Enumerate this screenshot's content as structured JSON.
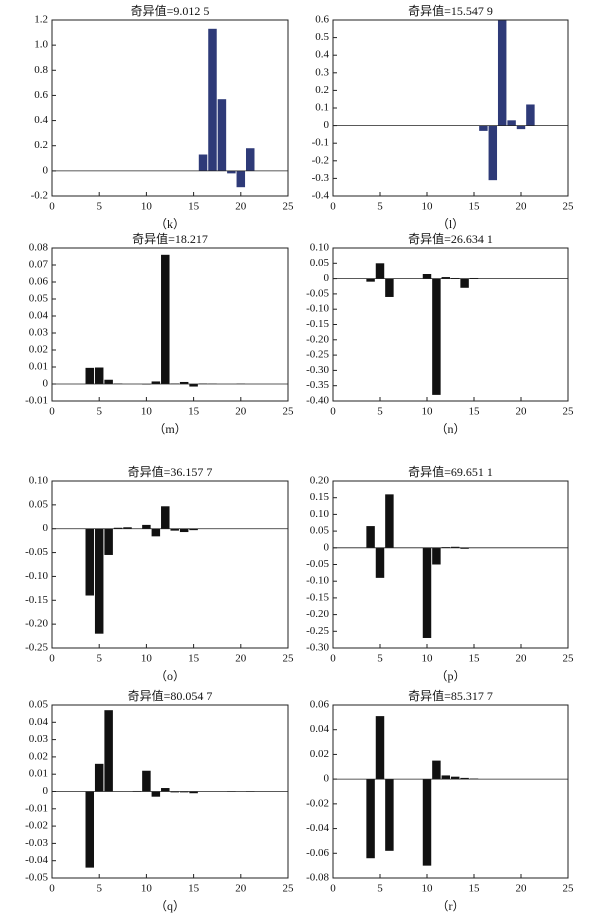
{
  "chart_data": [
    {
      "type": "bar",
      "title": "奇异值=9.012 5",
      "caption": "（k）",
      "color": "#2e3a78",
      "x": [
        1,
        2,
        3,
        4,
        5,
        6,
        7,
        8,
        9,
        10,
        11,
        12,
        13,
        14,
        15,
        16,
        17,
        18,
        19,
        20,
        21
      ],
      "values": [
        0,
        0,
        0,
        0,
        0,
        0,
        0,
        0,
        0,
        0,
        0,
        0,
        0,
        0,
        0,
        0.13,
        1.13,
        0.57,
        -0.02,
        -0.13,
        0.18
      ],
      "xlim": [
        0,
        25
      ],
      "xticks": [
        0,
        5,
        10,
        15,
        20,
        25
      ],
      "ylim": [
        -0.2,
        1.2
      ],
      "yticks": [
        -0.2,
        0,
        0.2,
        0.4,
        0.6,
        0.8,
        {
          "value": 1,
          "label": "1.0"
        },
        1.2
      ]
    },
    {
      "type": "bar",
      "title": "奇异值=15.547 9",
      "caption": "（l）",
      "color": "#2e3a78",
      "x": [
        1,
        2,
        3,
        4,
        5,
        6,
        7,
        8,
        9,
        10,
        11,
        12,
        13,
        14,
        15,
        16,
        17,
        18,
        19,
        20,
        21
      ],
      "values": [
        0,
        0,
        0,
        0,
        0,
        0,
        0,
        0,
        0,
        0,
        0,
        0,
        0,
        0,
        0,
        -0.03,
        -0.31,
        0.6,
        0.03,
        -0.02,
        0.12
      ],
      "xlim": [
        0,
        25
      ],
      "xticks": [
        0,
        5,
        10,
        15,
        20,
        25
      ],
      "ylim": [
        -0.4,
        0.6
      ],
      "yticks": [
        -0.4,
        -0.3,
        -0.2,
        -0.1,
        0,
        0.1,
        0.2,
        0.3,
        0.4,
        0.5,
        0.6
      ]
    },
    {
      "type": "bar",
      "title": "奇异值=18.217",
      "caption": "（m）",
      "color": "#111111",
      "x": [
        1,
        2,
        3,
        4,
        5,
        6,
        7,
        8,
        9,
        10,
        11,
        12,
        13,
        14,
        15,
        16,
        17,
        18,
        19,
        20,
        21
      ],
      "values": [
        0,
        0,
        0,
        0.0095,
        0.0097,
        0.0025,
        0.0003,
        0,
        0,
        -0.0003,
        0.0015,
        0.076,
        0.0003,
        0.0012,
        -0.0015,
        0.0003,
        0.0002,
        0,
        0,
        0.0002,
        0
      ],
      "xlim": [
        0,
        25
      ],
      "xticks": [
        0,
        5,
        10,
        15,
        20,
        25
      ],
      "ylim": [
        -0.01,
        0.08
      ],
      "yticks": [
        -0.01,
        0,
        0.01,
        0.02,
        0.03,
        0.04,
        0.05,
        0.06,
        0.07,
        0.08
      ]
    },
    {
      "type": "bar",
      "title": "奇异值=26.634 1",
      "caption": "（n）",
      "color": "#111111",
      "x": [
        1,
        2,
        3,
        4,
        5,
        6,
        7,
        8,
        9,
        10,
        11,
        12,
        13,
        14,
        15,
        16,
        17,
        18,
        19,
        20,
        21
      ],
      "values": [
        0,
        0,
        0,
        -0.01,
        0.05,
        -0.06,
        0,
        0,
        0,
        0.015,
        -0.38,
        0.005,
        0.002,
        -0.03,
        0.002,
        0,
        0,
        0,
        0,
        0,
        0
      ],
      "xlim": [
        0,
        25
      ],
      "xticks": [
        0,
        5,
        10,
        15,
        20,
        25
      ],
      "ylim": [
        -0.4,
        0.1
      ],
      "yticks": [
        {
          "value": -0.4,
          "label": "-0.40"
        },
        -0.35,
        {
          "value": -0.3,
          "label": "-0.30"
        },
        -0.25,
        {
          "value": -0.2,
          "label": "-0.20"
        },
        -0.15,
        {
          "value": -0.1,
          "label": "-0.10"
        },
        -0.05,
        0,
        0.05,
        {
          "value": 0.1,
          "label": "0.10"
        }
      ]
    },
    {
      "type": "bar",
      "title": "奇异值=36.157 7",
      "caption": "（o）",
      "color": "#111111",
      "x": [
        1,
        2,
        3,
        4,
        5,
        6,
        7,
        8,
        9,
        10,
        11,
        12,
        13,
        14,
        15,
        16,
        17,
        18,
        19,
        20,
        21
      ],
      "values": [
        0,
        0,
        0,
        -0.14,
        -0.22,
        -0.055,
        0.002,
        0.003,
        0,
        0.008,
        -0.016,
        0.047,
        -0.004,
        -0.007,
        -0.003,
        0,
        0,
        0,
        0,
        0,
        0
      ],
      "xlim": [
        0,
        25
      ],
      "xticks": [
        0,
        5,
        10,
        15,
        20,
        25
      ],
      "ylim": [
        -0.25,
        0.1
      ],
      "yticks": [
        -0.25,
        {
          "value": -0.2,
          "label": "-0.20"
        },
        -0.15,
        {
          "value": -0.1,
          "label": "-0.10"
        },
        -0.05,
        0,
        0.05,
        {
          "value": 0.1,
          "label": "0.10"
        }
      ]
    },
    {
      "type": "bar",
      "title": "奇异值=69.651 1",
      "caption": "（p）",
      "color": "#111111",
      "x": [
        1,
        2,
        3,
        4,
        5,
        6,
        7,
        8,
        9,
        10,
        11,
        12,
        13,
        14,
        15,
        16,
        17,
        18,
        19,
        20,
        21
      ],
      "values": [
        0,
        0,
        0,
        0.065,
        -0.09,
        0.16,
        0,
        0,
        0,
        -0.27,
        -0.05,
        0.002,
        0.003,
        -0.003,
        0,
        0,
        0,
        0,
        0,
        0,
        0
      ],
      "xlim": [
        0,
        25
      ],
      "xticks": [
        0,
        5,
        10,
        15,
        20,
        25
      ],
      "ylim": [
        -0.3,
        0.2
      ],
      "yticks": [
        {
          "value": -0.3,
          "label": "-0.30"
        },
        -0.25,
        {
          "value": -0.2,
          "label": "-0.20"
        },
        -0.15,
        {
          "value": -0.1,
          "label": "-0.10"
        },
        -0.05,
        0,
        0.05,
        {
          "value": 0.1,
          "label": "0.10"
        },
        0.15,
        {
          "value": 0.2,
          "label": "0.20"
        }
      ]
    },
    {
      "type": "bar",
      "title": "奇异值=80.054 7",
      "caption": "（q）",
      "color": "#111111",
      "x": [
        1,
        2,
        3,
        4,
        5,
        6,
        7,
        8,
        9,
        10,
        11,
        12,
        13,
        14,
        15,
        16,
        17,
        18,
        19,
        20,
        21
      ],
      "values": [
        0,
        0,
        0,
        -0.044,
        0.016,
        0.047,
        0,
        0,
        0.0003,
        0.012,
        -0.003,
        0.002,
        -0.0005,
        -0.0005,
        -0.001,
        0,
        0,
        0,
        0.0002,
        0,
        0.0002
      ],
      "xlim": [
        0,
        25
      ],
      "xticks": [
        0,
        5,
        10,
        15,
        20,
        25
      ],
      "ylim": [
        -0.05,
        0.05
      ],
      "yticks": [
        -0.05,
        -0.04,
        -0.03,
        -0.02,
        -0.01,
        0,
        0.01,
        0.02,
        0.03,
        0.04,
        0.05
      ]
    },
    {
      "type": "bar",
      "title": "奇异值=85.317 7",
      "caption": "（r）",
      "color": "#111111",
      "x": [
        1,
        2,
        3,
        4,
        5,
        6,
        7,
        8,
        9,
        10,
        11,
        12,
        13,
        14,
        15,
        16,
        17,
        18,
        19,
        20,
        21
      ],
      "values": [
        0,
        0,
        0,
        -0.064,
        0.051,
        -0.058,
        0,
        0,
        0,
        -0.07,
        0.015,
        0.003,
        0.002,
        0.001,
        0.0005,
        0,
        0,
        0,
        0,
        0,
        0
      ],
      "xlim": [
        0,
        25
      ],
      "xticks": [
        0,
        5,
        10,
        15,
        20,
        25
      ],
      "ylim": [
        -0.08,
        0.06
      ],
      "yticks": [
        -0.08,
        -0.06,
        -0.04,
        -0.02,
        0,
        0.02,
        0.04,
        0.06
      ]
    }
  ]
}
